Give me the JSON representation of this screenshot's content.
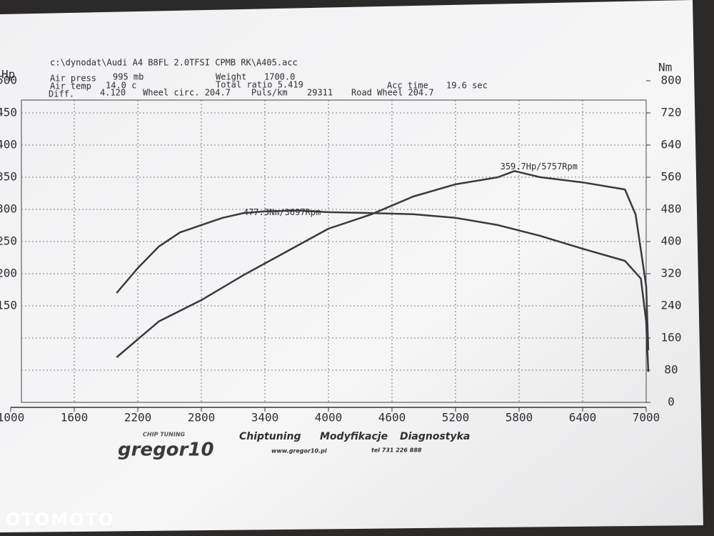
{
  "chart_data": {
    "type": "line",
    "header": [
      "c:\\dynodat\\Audi A4 B8FL 2.0TFSI CPMB RK\\A405.acc",
      "Air press",
      "995 mb",
      "Weight",
      "1700.0",
      "Air temp",
      "14.0 c",
      "Total ratio 5.419",
      "Acc time",
      "19.6 sec",
      "Diff.",
      "4.120",
      "Wheel circ. 204.7",
      "Puls/km",
      "29311",
      "Road Wheel 204.7"
    ],
    "y_label": "Hp",
    "y2_label": "Nm",
    "xlim": [
      1000,
      7000
    ],
    "xticks": [
      1000,
      1600,
      2200,
      2800,
      3400,
      4000,
      4600,
      5200,
      5800,
      6400,
      7000
    ],
    "ylim": [
      0,
      500
    ],
    "yticks": [
      150,
      200,
      250,
      300,
      350,
      400,
      450,
      500
    ],
    "y2lim": [
      0,
      800
    ],
    "y2ticks": [
      0,
      80,
      160,
      240,
      320,
      400,
      480,
      560,
      640,
      720,
      800
    ],
    "grid": true,
    "series": [
      {
        "name": "Nm",
        "color": "#3a3a3e",
        "axis": "y2",
        "x": [
          2000,
          2200,
          2400,
          2600,
          2800,
          3000,
          3200,
          3400,
          3697,
          4000,
          4400,
          4800,
          5200,
          5600,
          6000,
          6400,
          6800,
          6950,
          7000,
          7020
        ],
        "values": [
          272,
          334,
          388,
          423,
          441,
          459,
          471,
          475,
          477.3,
          473,
          471,
          468,
          459,
          441,
          414,
          382,
          352,
          308,
          201,
          76
        ]
      },
      {
        "name": "Hp",
        "color": "#3a3a3e",
        "axis": "y",
        "x": [
          2000,
          2400,
          2800,
          3200,
          3600,
          4000,
          4400,
          4800,
          5200,
          5600,
          5757,
          6000,
          6400,
          6800,
          6900,
          7000,
          7020
        ],
        "values": [
          70,
          126,
          159,
          198,
          234,
          270,
          292,
          320,
          339,
          350,
          359.7,
          350,
          342,
          331,
          292,
          181,
          81
        ]
      }
    ],
    "annotations": [
      "477.3Nm/3697Rpm",
      "359.7Hp/5757Rpm"
    ]
  },
  "footer": {
    "logo": "gregor10",
    "logo_sub": "CHIP TUNING",
    "services": [
      "Chiptuning",
      "Modyfikacje",
      "Diagnostyka"
    ],
    "www": "www.gregor10.pl",
    "tel": "tel 731 226 888",
    "watermark": "OTOMOTO"
  }
}
